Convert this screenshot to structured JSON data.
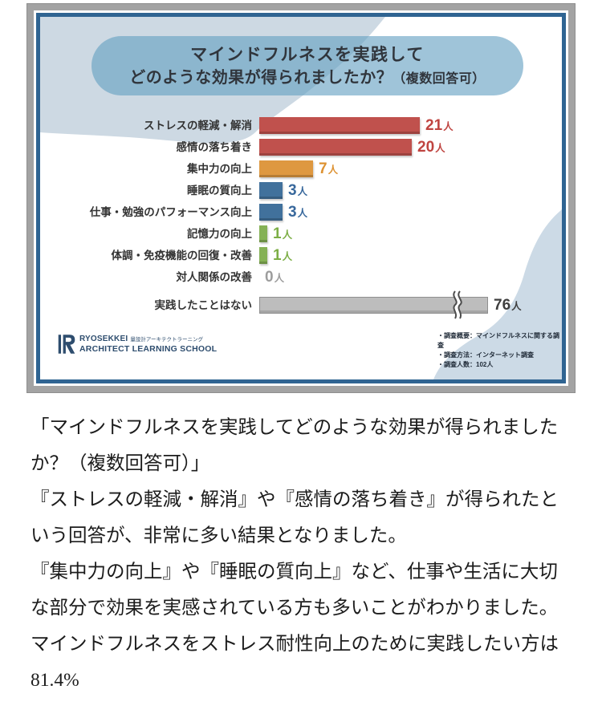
{
  "infographic": {
    "title_line1": "マインドフルネスを実践して",
    "title_line2_main": "どのような効果が得られましたか？",
    "title_line2_note": "（複数回答可）",
    "logo": {
      "name_en": "RYOSEKKEI",
      "name_jp": "量設計アーキテクトラーニング",
      "subtitle": "ARCHITECT LEARNING SCHOOL"
    },
    "survey_notes": [
      "・調査概要：マインドフルネスに関する調査",
      "・調査方法：インターネット調査",
      "・調査人数：102人"
    ]
  },
  "chart_data": {
    "type": "bar",
    "orientation": "horizontal",
    "title": "マインドフルネスを実践してどのような効果が得られましたか？（複数回答可）",
    "unit": "人",
    "categories": [
      "ストレスの軽減・解消",
      "感情の落ち着き",
      "集中力の向上",
      "睡眠の質向上",
      "仕事・勉強のパフォーマンス向上",
      "記憶力の向上",
      "体調・免疫機能の回復・改善",
      "対人関係の改善",
      "実践したことはない"
    ],
    "values": [
      21,
      20,
      7,
      3,
      3,
      1,
      1,
      0,
      76
    ],
    "bar_colors": [
      "#c0514d",
      "#c0514d",
      "#de9840",
      "#41719c",
      "#41719c",
      "#85b155",
      "#85b155",
      null,
      "#bdbdbd"
    ],
    "value_label_colors": [
      "#bf4440",
      "#bf4440",
      "#dd9232",
      "#38689c",
      "#38689c",
      "#7cae45",
      "#7cae45",
      "#9d9d9d",
      "#3e3e3e"
    ],
    "broken_index": 8,
    "xlim": [
      0,
      24
    ],
    "grid": false,
    "legend": false,
    "sample_size": 102
  },
  "article": {
    "paragraphs": [
      "「マインドフルネスを実践してどのような効果が得られましたか？（複数回答可）」",
      "『ストレスの軽減・解消』や『感情の落ち着き』が得られたという回答が、非常に多い結果となりました。",
      "『集中力の向上』や『睡眠の質向上』など、仕事や生活に大切な部分で効果を実感されている方も多いことがわかりました。マインドフルネスをストレス耐性向上のために実践したい方は81.4%"
    ]
  },
  "palette": {
    "frame_gray": "#a3a3a3",
    "card_border_blue": "#2f6492",
    "blob_blue": "#cdd9e3",
    "pill_blue": "#a2c6da",
    "title_text": "#30353c"
  }
}
